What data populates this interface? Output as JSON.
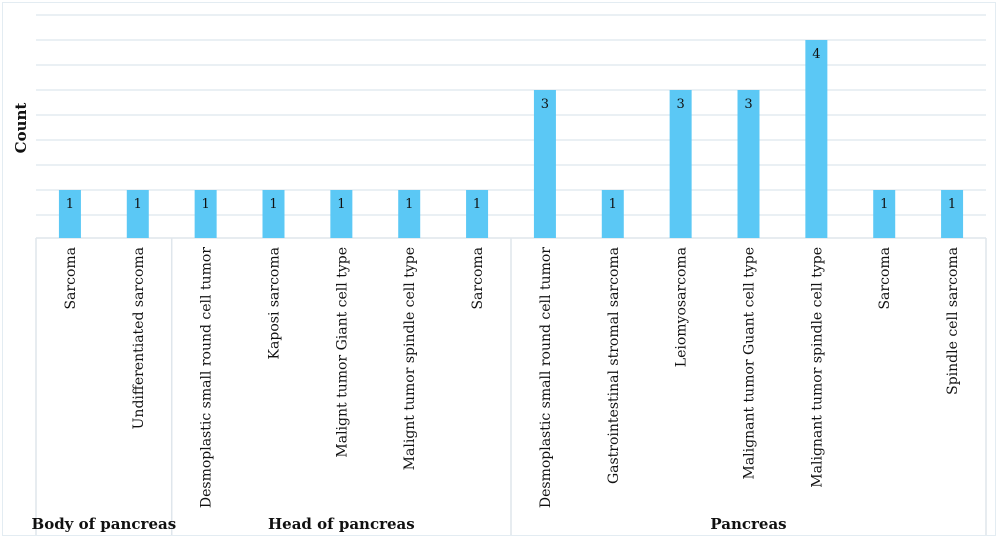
{
  "chart_data": {
    "type": "bar",
    "title": "",
    "xlabel": "",
    "ylabel": "Count",
    "ylim": [
      0,
      4.5
    ],
    "grid": true,
    "gridline_step": 0.5,
    "legend": "none",
    "bar_color": "#5bc8f5",
    "groups": [
      {
        "name": "Body of pancreas",
        "categories": [
          "Sarcoma",
          "Undifferentiated sarcoma"
        ],
        "values": [
          1,
          1
        ]
      },
      {
        "name": "Head of pancreas",
        "categories": [
          "Desmoplastic small round cell tumor",
          "Kaposi sarcoma",
          "Malignt tumor Giant cell type",
          "Malignt tumor spindle cell type",
          "Sarcoma"
        ],
        "values": [
          1,
          1,
          1,
          1,
          1
        ]
      },
      {
        "name": "Pancreas",
        "categories": [
          "Desmoplastic small round cell tumor",
          "Gastrointestinal stromal sarcoma",
          "Leiomyosarcoma",
          "Malignant tumor Guant cell type",
          "Malignant tumor spindle cell type",
          "Sarcoma",
          "Spindle cell sarcoma"
        ],
        "values": [
          3,
          1,
          3,
          3,
          4,
          1,
          1
        ]
      }
    ]
  }
}
